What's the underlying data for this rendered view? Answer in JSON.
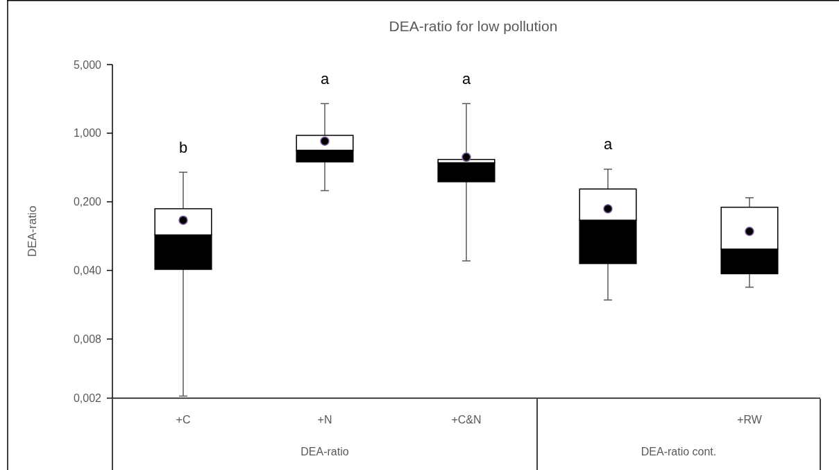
{
  "chart_data": {
    "type": "box",
    "title": "DEA-ratio for low pollution",
    "ylabel": "DEA-ratio",
    "categories": [
      "+C",
      "+N",
      "+C&N",
      null,
      "+RW"
    ],
    "boxes": [
      {
        "low": 0.0021,
        "q1": 0.041,
        "median": 0.092,
        "q3": 0.17,
        "high": 0.4,
        "mean": 0.13
      },
      {
        "low": 0.26,
        "q1": 0.51,
        "median": 0.67,
        "q3": 0.95,
        "high": 2.0,
        "mean": 0.83
      },
      {
        "low": 0.05,
        "q1": 0.32,
        "median": 0.5,
        "q3": 0.54,
        "high": 2.0,
        "mean": 0.57
      },
      {
        "low": 0.02,
        "q1": 0.047,
        "median": 0.13,
        "q3": 0.27,
        "high": 0.43,
        "mean": 0.17
      },
      {
        "low": 0.027,
        "q1": 0.037,
        "median": 0.066,
        "q3": 0.176,
        "high": 0.22,
        "mean": 0.1
      }
    ],
    "log": true,
    "ylim": [
      0.002,
      5
    ],
    "yticks": [
      {
        "value": 0.002,
        "label": "0,002"
      },
      {
        "value": 0.008,
        "label": "0,008"
      },
      {
        "value": 0.04,
        "label": "0,040"
      },
      {
        "value": 0.2,
        "label": "0,200"
      },
      {
        "value": 1,
        "label": "1,000"
      },
      {
        "value": 5,
        "label": "5,000"
      }
    ],
    "grid": false,
    "annotations": [
      "b",
      "a",
      "a",
      "a",
      "DEA-ratio",
      "DEA-ratio cont."
    ]
  }
}
